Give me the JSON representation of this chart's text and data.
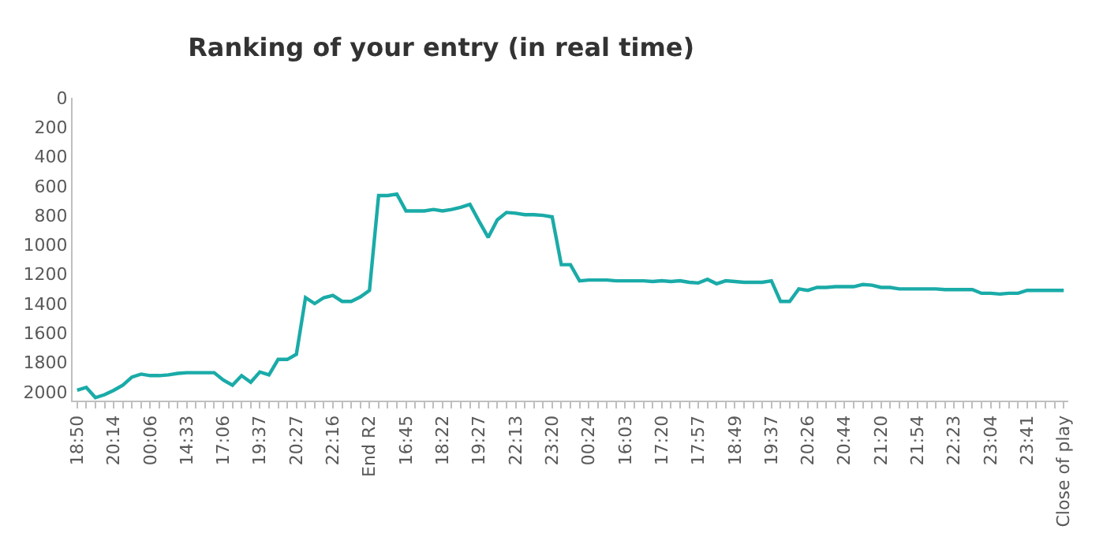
{
  "chart_data": {
    "type": "line",
    "title": "Ranking of your entry (in real time)",
    "categories": [
      "18:50",
      null,
      null,
      null,
      "20:14",
      null,
      null,
      null,
      "00:06",
      null,
      null,
      null,
      "14:33",
      null,
      null,
      null,
      "17:06",
      null,
      null,
      null,
      "19:37",
      null,
      null,
      null,
      "20:27",
      null,
      null,
      null,
      "22:16",
      null,
      null,
      null,
      "End R2",
      null,
      null,
      null,
      "16:45",
      null,
      null,
      null,
      "18:22",
      null,
      null,
      null,
      "19:27",
      null,
      null,
      null,
      "22:13",
      null,
      null,
      null,
      "23:20",
      null,
      null,
      null,
      "00:24",
      null,
      null,
      null,
      "16:03",
      null,
      null,
      null,
      "17:20",
      null,
      null,
      null,
      "17:57",
      null,
      null,
      null,
      "18:49",
      null,
      null,
      null,
      "19:37",
      null,
      null,
      null,
      "20:26",
      null,
      null,
      null,
      "20:44",
      null,
      null,
      null,
      "21:20",
      null,
      null,
      null,
      "21:54",
      null,
      null,
      null,
      "22:23",
      null,
      null,
      null,
      "23:04",
      null,
      null,
      null,
      "23:41",
      null,
      null,
      null,
      "Close of play"
    ],
    "series": [
      {
        "color": "#1aaba8",
        "values": [
          1990,
          1970,
          2040,
          2020,
          1990,
          1955,
          1900,
          1880,
          1890,
          1890,
          1885,
          1875,
          1870,
          1870,
          1870,
          1870,
          1920,
          1955,
          1890,
          1935,
          1865,
          1885,
          1780,
          1780,
          1745,
          1360,
          1400,
          1360,
          1345,
          1385,
          1385,
          1355,
          1310,
          665,
          665,
          655,
          770,
          770,
          770,
          760,
          770,
          760,
          745,
          725,
          840,
          950,
          830,
          780,
          785,
          795,
          795,
          800,
          810,
          1135,
          1135,
          1245,
          1240,
          1240,
          1240,
          1245,
          1245,
          1245,
          1245,
          1250,
          1245,
          1250,
          1245,
          1255,
          1260,
          1235,
          1265,
          1245,
          1250,
          1255,
          1255,
          1255,
          1245,
          1385,
          1385,
          1300,
          1310,
          1290,
          1290,
          1285,
          1285,
          1285,
          1270,
          1275,
          1290,
          1290,
          1300,
          1300,
          1300,
          1300,
          1300,
          1305,
          1305,
          1305,
          1305,
          1330,
          1330,
          1335,
          1330,
          1330,
          1310,
          1310,
          1310,
          1310,
          1310
        ]
      }
    ],
    "ylim": [
      2060,
      0
    ],
    "yticks": [
      0,
      200,
      400,
      600,
      800,
      1000,
      1200,
      1400,
      1600,
      1800,
      2000
    ],
    "marker": "none",
    "line_style": "solid"
  }
}
